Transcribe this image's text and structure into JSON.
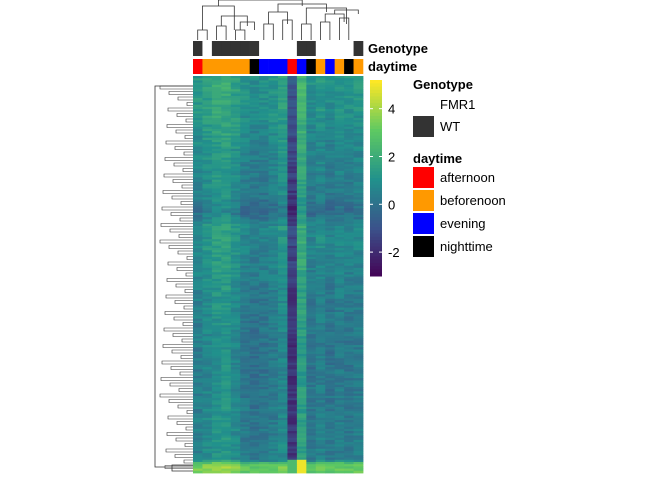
{
  "chart_data": {
    "type": "heatmap",
    "title": "",
    "annotation_tracks": [
      "Genotype",
      "daytime"
    ],
    "samples": 18,
    "genotype": [
      "WT",
      "FMR1",
      "WT",
      "WT",
      "WT",
      "WT",
      "WT",
      "FMR1",
      "FMR1",
      "FMR1",
      "FMR1",
      "WT",
      "WT",
      "FMR1",
      "FMR1",
      "FMR1",
      "FMR1",
      "WT"
    ],
    "daytime": [
      "afternoon",
      "beforenoon",
      "beforenoon",
      "beforenoon",
      "beforenoon",
      "beforenoon",
      "nighttime",
      "evening",
      "evening",
      "evening",
      "afternoon",
      "evening",
      "nighttime",
      "beforenoon",
      "evening",
      "beforenoon",
      "nighttime",
      "beforenoon"
    ],
    "column_profile": [
      0.6,
      0.9,
      1.2,
      1.3,
      0.9,
      0.4,
      0.2,
      0.3,
      0.5,
      0.9,
      -1.6,
      1.6,
      0.3,
      0.6,
      0.3,
      0.5,
      0.4,
      0.5
    ],
    "row_profile": [
      {
        "row": 0.0,
        "offset": 0.8
      },
      {
        "row": 0.1,
        "offset": 0.6
      },
      {
        "row": 0.2,
        "offset": 0.2
      },
      {
        "row": 0.3,
        "offset": 0.0
      },
      {
        "row": 0.34,
        "offset": -0.6
      },
      {
        "row": 0.38,
        "offset": 0.4
      },
      {
        "row": 0.45,
        "offset": 0.3
      },
      {
        "row": 0.55,
        "offset": 0.0
      },
      {
        "row": 0.7,
        "offset": -0.2
      },
      {
        "row": 0.85,
        "offset": -0.1
      },
      {
        "row": 0.97,
        "offset": 0.0
      },
      {
        "row": 0.98,
        "offset": 2.6
      },
      {
        "row": 1.0,
        "offset": 2.8
      }
    ],
    "colorbar": {
      "range": [
        -3,
        5.2
      ],
      "ticks": [
        -2,
        0,
        2,
        4
      ],
      "tick_labels": [
        "-2",
        "0",
        "2",
        "4"
      ],
      "colormap": [
        "#440154",
        "#3b528b",
        "#21918c",
        "#5ec962",
        "#fde725"
      ]
    },
    "legend": {
      "genotype_title": "Genotype",
      "genotype_items": [
        {
          "label": "FMR1",
          "color": "#ffffff"
        },
        {
          "label": "WT",
          "color": "#333333"
        }
      ],
      "daytime_title": "daytime",
      "daytime_items": [
        {
          "label": "afternoon",
          "color": "#ff0000"
        },
        {
          "label": "beforenoon",
          "color": "#ff9900"
        },
        {
          "label": "evening",
          "color": "#0000ff"
        },
        {
          "label": "nighttime",
          "color": "#000000"
        }
      ]
    }
  }
}
